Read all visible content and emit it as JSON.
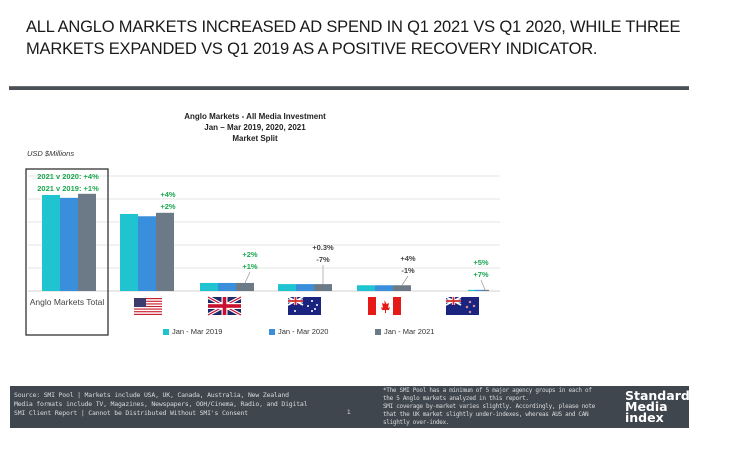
{
  "headline": {
    "line1": "ALL ANGLO MARKETS INCREASED AD SPEND IN Q1 2021 VS Q1 2020, WHILE THREE",
    "line2": "MARKETS EXPANDED VS Q1 2019 AS A POSITIVE RECOVERY INDICATOR."
  },
  "chart_data": {
    "type": "bar",
    "title": [
      "Anglo Markets - All Media Investment",
      "Jan – Mar 2019, 2020, 2021",
      "Market Split"
    ],
    "ylabel": "USD $Millions",
    "xlabel": "",
    "y_tick_labels_shown": false,
    "ylim": [
      0,
      100
    ],
    "grid": true,
    "value_note": "No axis values shown; values are estimated relative heights on a 0–100 gridline scale",
    "categories": [
      "Anglo Markets Total",
      "USA",
      "UK",
      "Australia",
      "Canada",
      "New Zealand"
    ],
    "category_icons": [
      "text",
      "usa-flag",
      "uk-flag",
      "australia-flag",
      "canada-flag",
      "new-zealand-flag"
    ],
    "series": [
      {
        "name": "Jan - Mar 2019",
        "color": "#1fc4d0",
        "values": [
          83.5,
          67,
          7,
          6,
          5,
          1
        ]
      },
      {
        "name": "Jan - Mar 2020",
        "color": "#3a8fdc",
        "values": [
          81,
          65,
          7,
          6,
          5,
          1
        ]
      },
      {
        "name": "Jan - Mar 2021",
        "color": "#6b7a86",
        "values": [
          84.5,
          68,
          7,
          6,
          5,
          1
        ]
      }
    ],
    "annotations": [
      {
        "category": "Anglo Markets Total",
        "line1": "2021 v 2020: +4%",
        "line2": "2021 v 2019: +1%",
        "color": "#1aa84f"
      },
      {
        "category": "USA",
        "line1": "+4%",
        "line2": "+2%",
        "color": "#1aa84f"
      },
      {
        "category": "UK",
        "line1": "+2%",
        "line2": "+1%",
        "color": "#1aa84f"
      },
      {
        "category": "Australia",
        "line1": "+0.3%",
        "line2": "-7%",
        "color": "#444444"
      },
      {
        "category": "Canada",
        "line1": "+4%",
        "line2": "-1%",
        "color": "#444444"
      },
      {
        "category": "New Zealand",
        "line1": "+5%",
        "line2": "+7%",
        "color": "#1aa84f"
      }
    ],
    "legend": {
      "placement": "bottom",
      "entries": [
        "Jan - Mar 2019",
        "Jan - Mar 2020",
        "Jan - Mar 2021"
      ]
    },
    "highlight_box": "Anglo Markets Total"
  },
  "footer": {
    "source_lines": [
      "Source: SMI Pool | Markets include USA, UK, Canada, Australia, New Zealand",
      "Media formats include TV, Magazines, Newspapers, OOH/Cinema, Radio, and Digital",
      "SMI Client Report | Cannot be Distributed Without SMI's Consent"
    ],
    "page_number": "1",
    "note_lines": [
      "*The SMI Pool has a minimum of 5 major agency groups in each of",
      "the 5 Anglo markets analyzed in this report.",
      "SMI coverage by-market varies slightly. Accordingly, please note",
      "that the UK market slightly under-indexes, whereas AUS and CAN",
      "slightly over-index."
    ],
    "logo_lines": [
      "Standard",
      "Media",
      "index"
    ]
  },
  "colors": {
    "footer_bg": "#40464d",
    "positive": "#1aa84f",
    "neutral": "#444444"
  }
}
